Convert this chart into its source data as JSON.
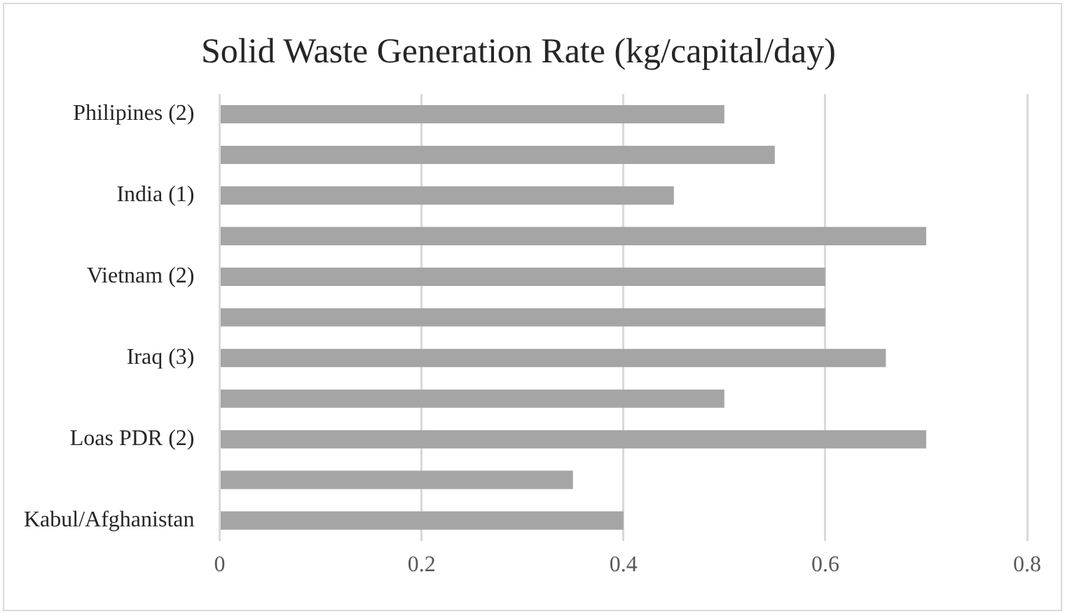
{
  "chart_data": {
    "type": "bar",
    "orientation": "horizontal",
    "title": "Solid Waste Generation Rate (kg/capital/day)",
    "categories": [
      "Philipines (2)",
      null,
      "India (1)",
      null,
      "Vietnam (2)",
      null,
      "Iraq (3)",
      null,
      "Loas PDR (2)",
      null,
      "Kabul/Afghanistan"
    ],
    "values": [
      0.5,
      0.55,
      0.45,
      0.7,
      0.6,
      0.6,
      0.66,
      0.5,
      0.7,
      0.35,
      0.4
    ],
    "color": "#a5a5a5",
    "xlim": [
      0,
      0.8
    ],
    "xticks": [
      0,
      0.2,
      0.4,
      0.6,
      0.8
    ],
    "grid": "x",
    "legend": false
  }
}
